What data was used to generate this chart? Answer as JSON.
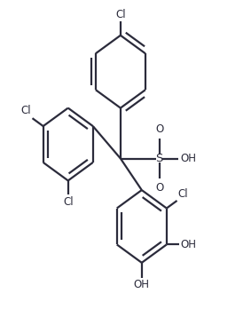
{
  "background_color": "#ffffff",
  "line_color": "#2b2b3b",
  "line_width": 1.6,
  "font_size_label": 8.5,
  "fig_width": 2.83,
  "fig_height": 3.57,
  "dpi": 100,
  "xlim": [
    0.0,
    1.0
  ],
  "ylim": [
    0.0,
    1.0
  ]
}
